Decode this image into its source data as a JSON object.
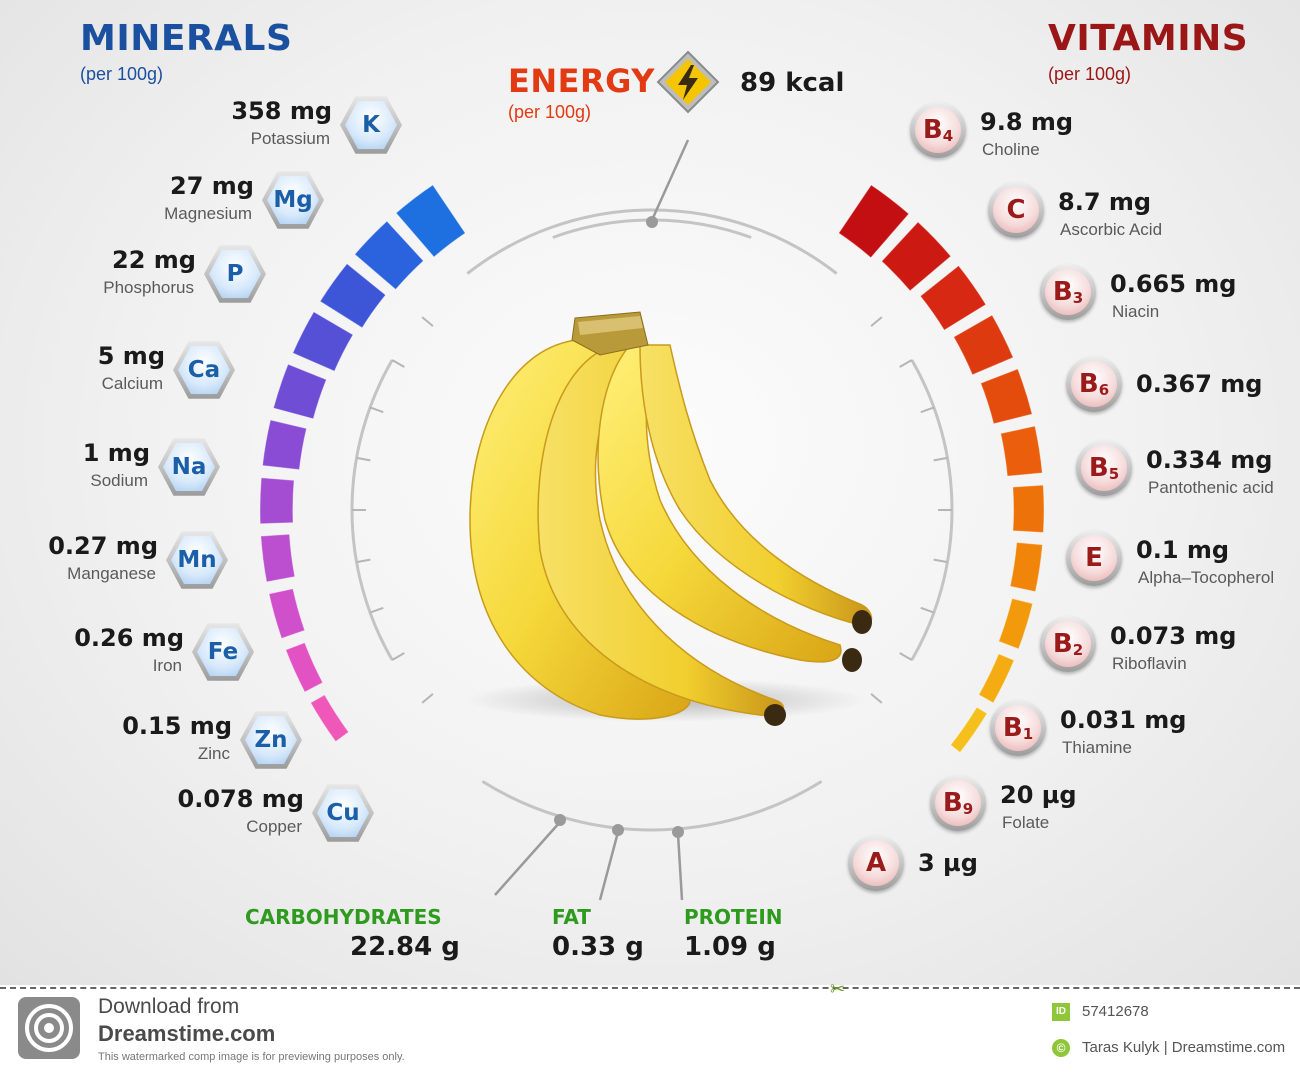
{
  "minerals": {
    "title": "MINERALS",
    "subtitle": "(per 100g)",
    "items": [
      {
        "symbol": "K",
        "amount": "358 mg",
        "name": "Potassium"
      },
      {
        "symbol": "Mg",
        "amount": "27 mg",
        "name": "Magnesium"
      },
      {
        "symbol": "P",
        "amount": "22 mg",
        "name": "Phosphorus"
      },
      {
        "symbol": "Ca",
        "amount": "5 mg",
        "name": "Calcium"
      },
      {
        "symbol": "Na",
        "amount": "1 mg",
        "name": "Sodium"
      },
      {
        "symbol": "Mn",
        "amount": "0.27 mg",
        "name": "Manganese"
      },
      {
        "symbol": "Fe",
        "amount": "0.26 mg",
        "name": "Iron"
      },
      {
        "symbol": "Zn",
        "amount": "0.15 mg",
        "name": "Zinc"
      },
      {
        "symbol": "Cu",
        "amount": "0.078 mg",
        "name": "Copper"
      }
    ]
  },
  "vitamins": {
    "title": "VITAMINS",
    "subtitle": "(per 100g)",
    "items": [
      {
        "letter": "B",
        "index": "4",
        "amount": "9.8 mg",
        "name": "Choline"
      },
      {
        "letter": "C",
        "index": "",
        "amount": "8.7 mg",
        "name": "Ascorbic Acid"
      },
      {
        "letter": "B",
        "index": "3",
        "amount": "0.665 mg",
        "name": "Niacin"
      },
      {
        "letter": "B",
        "index": "6",
        "amount": "0.367 mg",
        "name": ""
      },
      {
        "letter": "B",
        "index": "5",
        "amount": "0.334 mg",
        "name": "Pantothenic acid"
      },
      {
        "letter": "E",
        "index": "",
        "amount": "0.1 mg",
        "name": "Alpha–Tocopherol"
      },
      {
        "letter": "B",
        "index": "2",
        "amount": "0.073 mg",
        "name": "Riboflavin"
      },
      {
        "letter": "B",
        "index": "1",
        "amount": "0.031 mg",
        "name": "Thiamine"
      },
      {
        "letter": "B",
        "index": "9",
        "amount": "20 µg",
        "name": "Folate"
      },
      {
        "letter": "A",
        "index": "",
        "amount": "3 µg",
        "name": ""
      }
    ]
  },
  "energy": {
    "title": "ENERGY",
    "subtitle": "(per 100g)",
    "value": "89 kcal",
    "icon": "lightning-bolt-icon"
  },
  "macros": [
    {
      "label": "CARBOHYDRATES",
      "value": "22.84 g"
    },
    {
      "label": "FAT",
      "value": "0.33 g"
    },
    {
      "label": "PROTEIN",
      "value": "1.09 g"
    }
  ],
  "footer": {
    "download_line": "Download from",
    "site": "Dreamstime.com",
    "notice": "This watermarked comp image is for previewing purposes only.",
    "id_badge": "ID",
    "id_number": "57412678",
    "credit": "Taras Kulyk | Dreamstime.com"
  },
  "colors": {
    "minerals_title": "#1b4fa0",
    "vitamins_title": "#9b1616",
    "energy_title": "#e23a12",
    "macro_label": "#2e9a1e",
    "banana": "#f5d83a",
    "id_green": "#8fc63a"
  }
}
